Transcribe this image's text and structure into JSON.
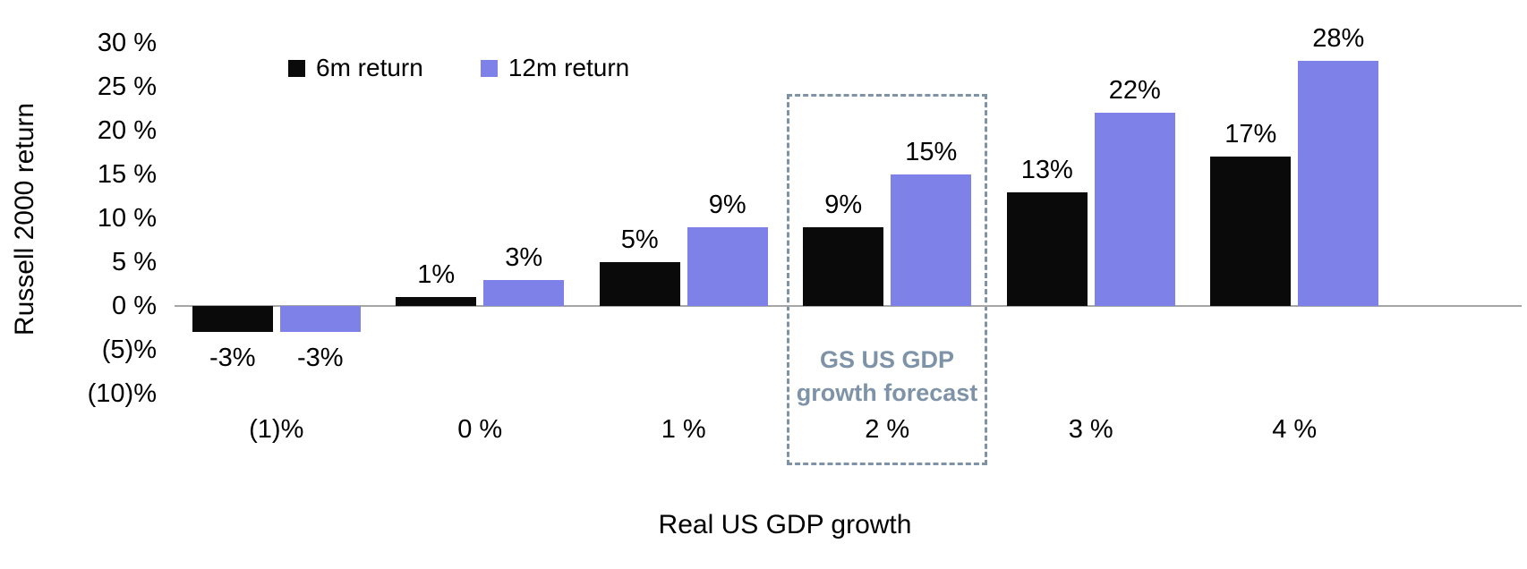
{
  "chart_data": {
    "type": "bar",
    "title": "",
    "xlabel": "Real US GDP growth",
    "ylabel": "Russell 2000 return",
    "categories": [
      "(1)%",
      "0 %",
      "1 %",
      "2 %",
      "3 %",
      "4 %"
    ],
    "series": [
      {
        "name": "6m return",
        "color": "#0a0a0a",
        "values": [
          -3,
          1,
          5,
          9,
          13,
          17
        ],
        "labels": [
          "-3%",
          "1%",
          "5%",
          "9%",
          "13%",
          "17%"
        ]
      },
      {
        "name": "12m return",
        "color": "#7d81e8",
        "values": [
          -3,
          3,
          9,
          15,
          22,
          28
        ],
        "labels": [
          "-3%",
          "3%",
          "9%",
          "15%",
          "22%",
          "28%"
        ]
      }
    ],
    "y_tick_labels": [
      "30 %",
      "25 %",
      "20 %",
      "15 %",
      "10 %",
      "5 %",
      "0 %",
      "(5)%",
      "(10)%"
    ],
    "y_tick_values": [
      30,
      25,
      20,
      15,
      10,
      5,
      0,
      -5,
      -10
    ],
    "ylim": [
      -10,
      30
    ],
    "grid": false,
    "legend_position": "top-left",
    "axis_line_color": "#a6a6a6",
    "annotation": {
      "line1": "GS US GDP",
      "line2": "growth forecast",
      "category": "2 %",
      "category_index": 3,
      "box_color": "#7e93a8",
      "text_color": "#7e93a8"
    }
  }
}
